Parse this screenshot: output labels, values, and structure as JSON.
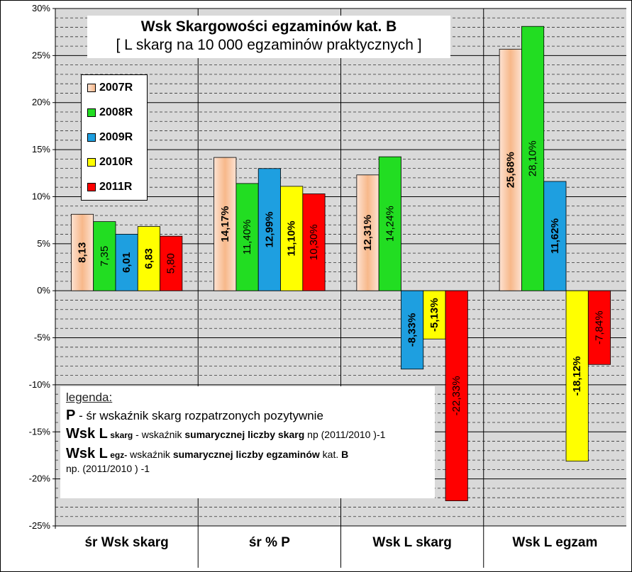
{
  "chart_data": {
    "type": "bar",
    "title": "Wsk Skargowości egzaminów kat. B",
    "subtitle": "[ L skarg na 10 000 egzaminów praktycznych ]",
    "categories": [
      "śr Wsk skarg",
      "śr % P",
      "Wsk L skarg",
      "Wsk L egzam"
    ],
    "series": [
      {
        "name": "2007R",
        "color": "#f7b88a",
        "values": [
          8.13,
          14.17,
          12.31,
          25.68
        ],
        "labels": [
          "8,13",
          "14,17%",
          "12,31%",
          "25,68%"
        ]
      },
      {
        "name": "2008R",
        "color": "#22dd22",
        "values": [
          7.35,
          11.4,
          14.24,
          28.1
        ],
        "labels": [
          "7,35",
          "11,40%",
          "14,24%",
          "28,10%"
        ]
      },
      {
        "name": "2009R",
        "color": "#1e9fe0",
        "values": [
          6.01,
          12.99,
          -8.33,
          11.62
        ],
        "labels": [
          "6,01",
          "12,99%",
          "-8,33%",
          "11,62%"
        ]
      },
      {
        "name": "2010R",
        "color": "#ffff00",
        "values": [
          6.83,
          11.1,
          -5.13,
          -18.12
        ],
        "labels": [
          "6,83",
          "11,10%",
          "-5,13%",
          "-18,12%"
        ]
      },
      {
        "name": "2011R",
        "color": "#ff0000",
        "values": [
          5.8,
          10.3,
          -22.33,
          -7.84
        ],
        "labels": [
          "5,80",
          "10,30%",
          "-22,33%",
          "-7,84%"
        ]
      }
    ],
    "yticks": [
      "30%",
      "25%",
      "20%",
      "15%",
      "10%",
      "5%",
      "0%",
      "-5%",
      "-10%",
      "-15%",
      "-20%",
      "-25%"
    ],
    "ylim": [
      -25,
      30
    ],
    "legend_position": "top-left",
    "grid": true
  },
  "note": {
    "heading": "legenda:",
    "line1_key": "P",
    "line1_text": " - śr wskaźnik skarg rozpatrzonych pozytywnie",
    "line2_key": "Wsk L",
    "line2_sub": " skarg",
    "line2_text1": "  - wskaźnik ",
    "line2_bold": "sumarycznej liczby skarg",
    "line2_text2": " np (2011/2010 )-1",
    "line3_key": "Wsk L",
    "line3_sub": " egz-",
    "line3_text1": "  wskaźnik ",
    "line3_bold1": "sumarycznej liczby egzaminów",
    "line3_text2": "  kat. ",
    "line3_bold2": "B",
    "line4_text": "np. (2011/2010 ) -1"
  }
}
